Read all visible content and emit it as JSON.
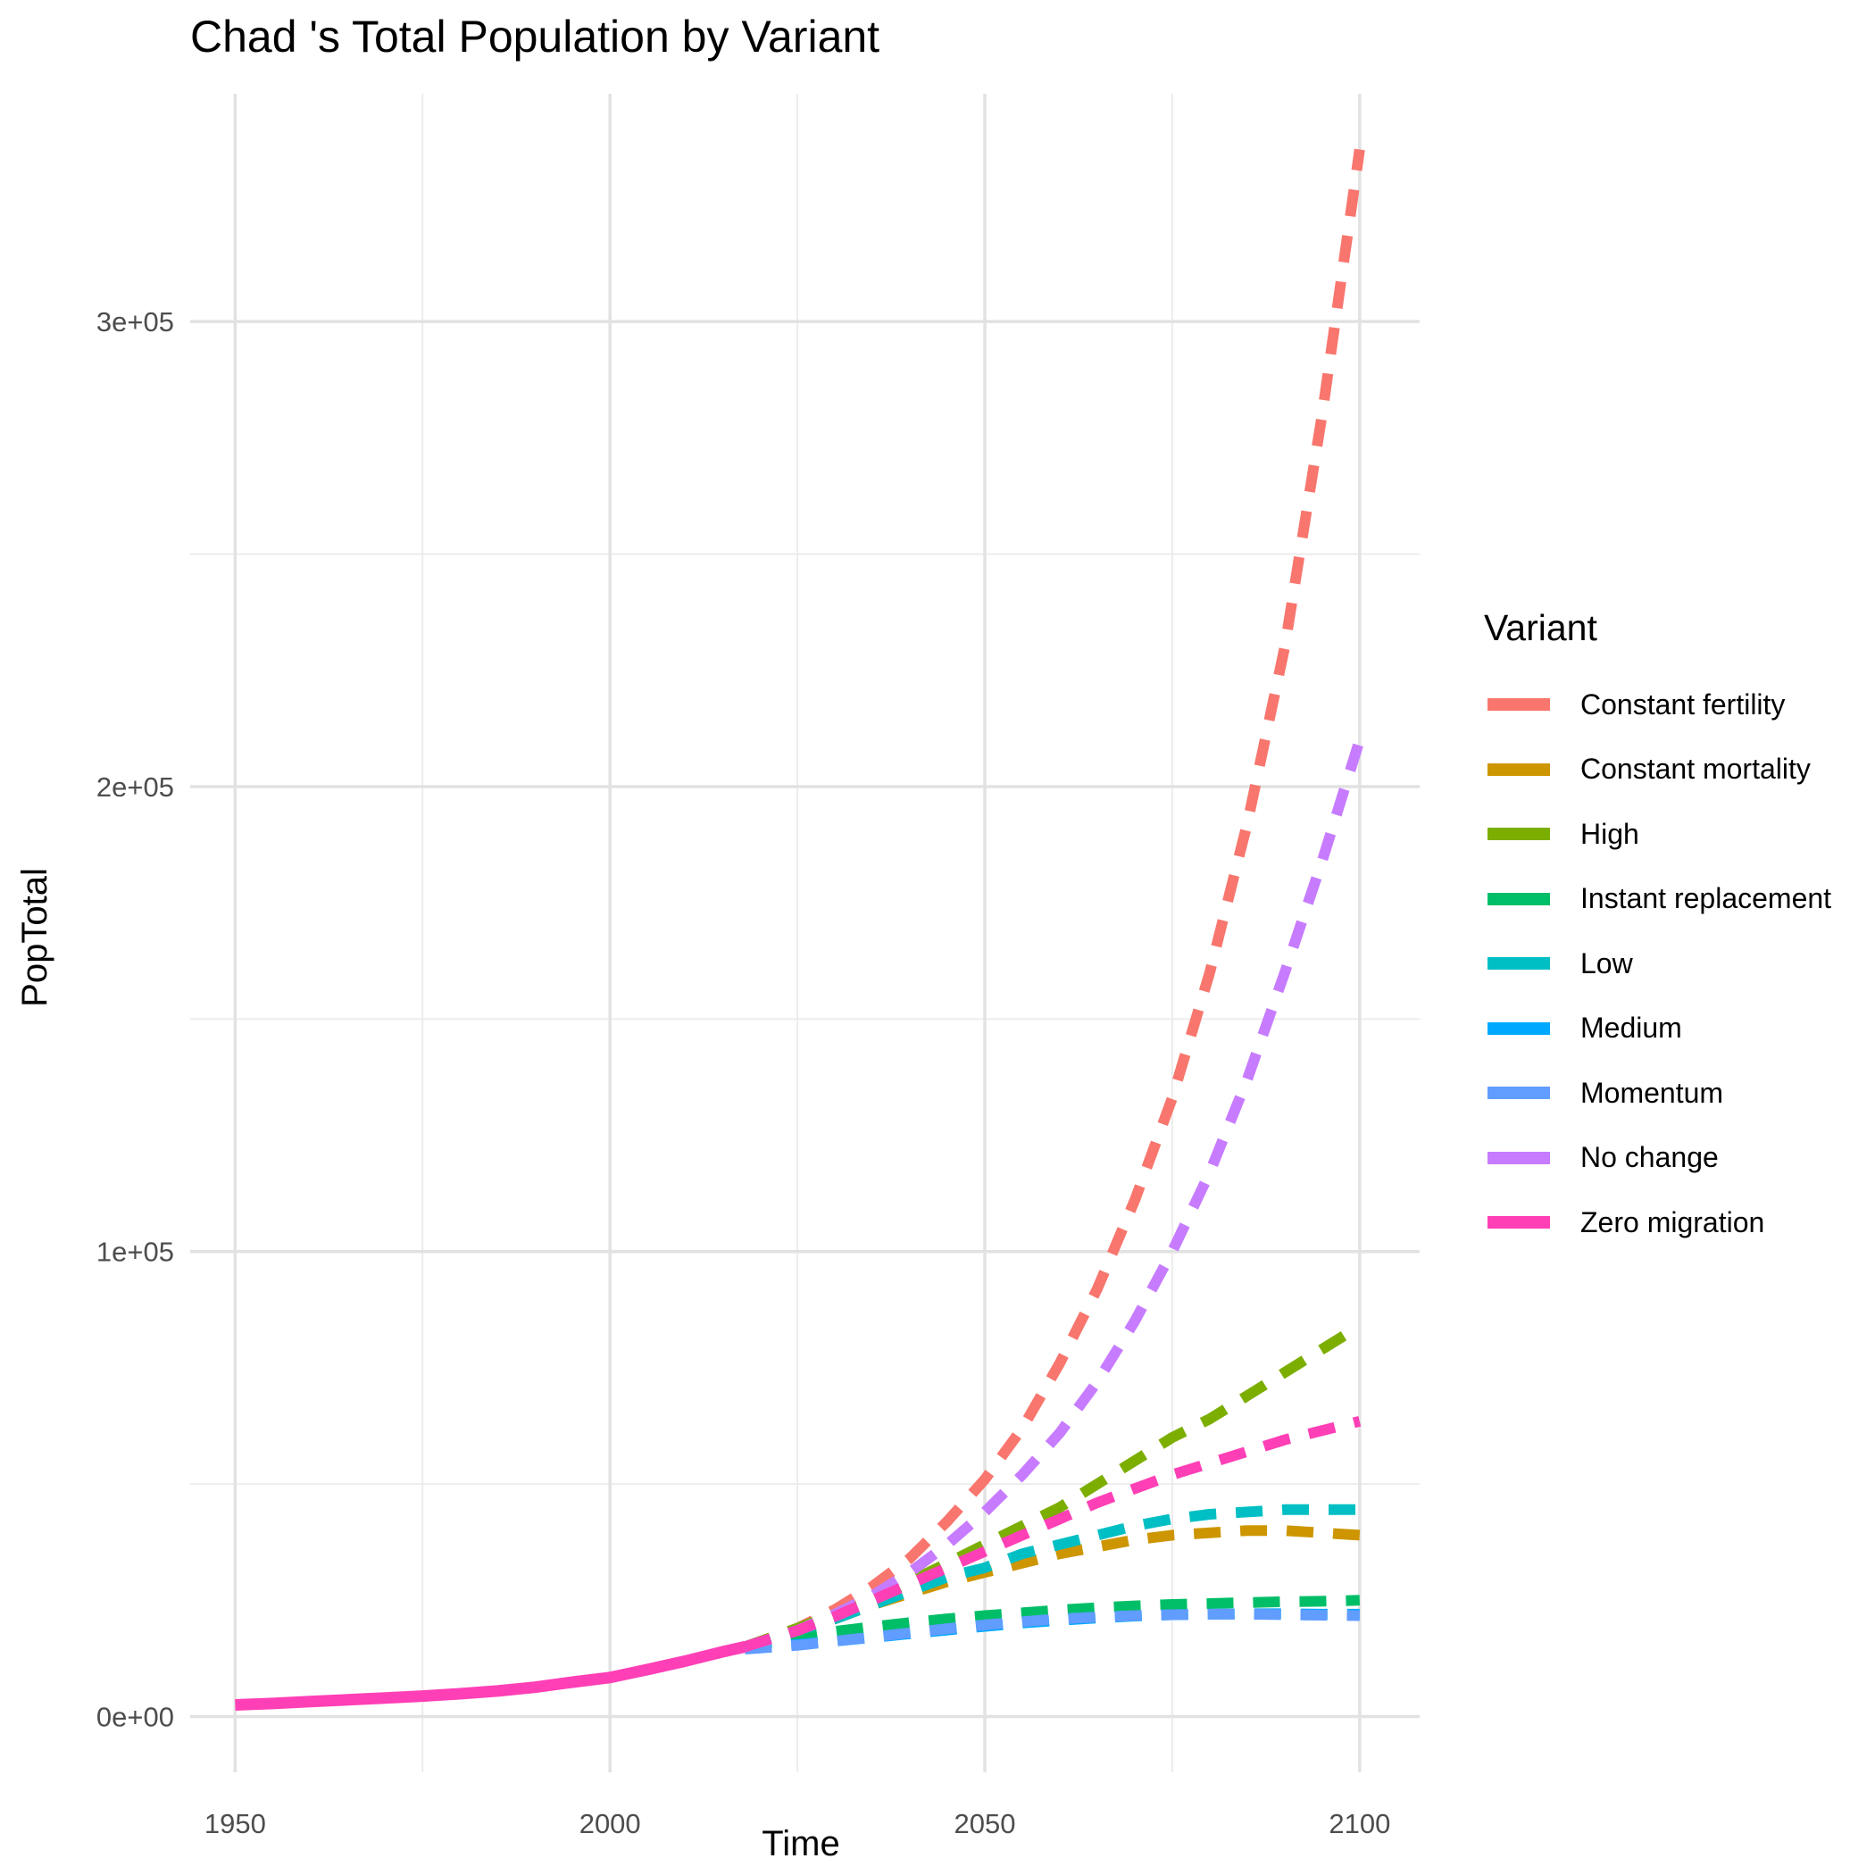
{
  "chart_data": {
    "type": "line",
    "title": "Chad 's Total Population by Variant",
    "xlabel": "Time",
    "ylabel": "PopTotal",
    "xlim": [
      1944,
      2108
    ],
    "ylim": [
      -12000,
      349000
    ],
    "x_ticks": [
      1950,
      2000,
      2050,
      2100
    ],
    "x_tick_labels": [
      "1950",
      "2000",
      "2050",
      "2100"
    ],
    "y_ticks": [
      0,
      100000,
      200000,
      300000
    ],
    "y_tick_labels": [
      "0e+00",
      "1e+05",
      "2e+05",
      "3e+05"
    ],
    "grid": true,
    "legend_title": "Variant",
    "legend_position": "right",
    "historical": {
      "name": "Zero migration",
      "color": "#FF3FB6",
      "x": [
        1950,
        1955,
        1960,
        1965,
        1970,
        1975,
        1980,
        1985,
        1990,
        1995,
        2000,
        2005,
        2010,
        2015,
        2018
      ],
      "y": [
        2500,
        2800,
        3200,
        3600,
        4000,
        4400,
        4900,
        5500,
        6300,
        7400,
        8400,
        10100,
        11900,
        13900,
        15000
      ]
    },
    "series": [
      {
        "name": "Constant fertility",
        "color": "#F8766D",
        "x": [
          2018,
          2025,
          2030,
          2035,
          2040,
          2045,
          2050,
          2055,
          2060,
          2065,
          2070,
          2075,
          2080,
          2085,
          2090,
          2095,
          2100
        ],
        "y": [
          15000,
          19000,
          23000,
          28000,
          34000,
          42000,
          51000,
          62000,
          76000,
          92000,
          111000,
          133000,
          160000,
          192000,
          230000,
          280000,
          337000
        ]
      },
      {
        "name": "Constant mortality",
        "color": "#CD9600",
        "x": [
          2018,
          2025,
          2030,
          2035,
          2040,
          2045,
          2050,
          2055,
          2060,
          2065,
          2070,
          2075,
          2080,
          2085,
          2090,
          2095,
          2100
        ],
        "y": [
          15000,
          18500,
          21000,
          24000,
          26500,
          29000,
          31000,
          33000,
          35000,
          36500,
          38000,
          39000,
          39500,
          40000,
          40000,
          39500,
          39000
        ]
      },
      {
        "name": "High",
        "color": "#7CAE00",
        "x": [
          2018,
          2025,
          2030,
          2035,
          2040,
          2045,
          2050,
          2055,
          2060,
          2065,
          2070,
          2075,
          2080,
          2085,
          2090,
          2095,
          2100
        ],
        "y": [
          15000,
          19000,
          22000,
          25000,
          29000,
          33000,
          37000,
          41000,
          45000,
          50000,
          55000,
          60000,
          64000,
          69000,
          74000,
          79000,
          84000
        ]
      },
      {
        "name": "Instant replacement",
        "color": "#00BE67",
        "x": [
          2018,
          2025,
          2030,
          2035,
          2040,
          2045,
          2050,
          2055,
          2060,
          2065,
          2070,
          2075,
          2080,
          2085,
          2090,
          2095,
          2100
        ],
        "y": [
          15000,
          17000,
          18300,
          19300,
          20200,
          21000,
          21700,
          22300,
          22900,
          23400,
          23800,
          24100,
          24300,
          24500,
          24700,
          24800,
          25000
        ]
      },
      {
        "name": "Low",
        "color": "#00BFC4",
        "x": [
          2018,
          2025,
          2030,
          2035,
          2040,
          2045,
          2050,
          2055,
          2060,
          2065,
          2070,
          2075,
          2080,
          2085,
          2090,
          2095,
          2100
        ],
        "y": [
          15000,
          18500,
          21000,
          24000,
          27000,
          30000,
          32000,
          35000,
          37000,
          39000,
          41000,
          42500,
          43500,
          44000,
          44500,
          44500,
          44500
        ]
      },
      {
        "name": "Medium",
        "color": "#00A9FF",
        "x": [
          2018,
          2025,
          2030,
          2035,
          2040,
          2045,
          2050,
          2055,
          2060,
          2065,
          2070,
          2075,
          2080,
          2085,
          2090,
          2095,
          2100
        ],
        "y": [
          15000,
          15500,
          16200,
          17000,
          17800,
          18600,
          19400,
          20100,
          20700,
          21200,
          21600,
          21900,
          22000,
          22100,
          22100,
          22000,
          22000
        ]
      },
      {
        "name": "Momentum",
        "color": "#619CFF",
        "x": [
          2018,
          2025,
          2030,
          2035,
          2040,
          2045,
          2050,
          2055,
          2060,
          2065,
          2070,
          2075,
          2080,
          2085,
          2090,
          2095,
          2100
        ],
        "y": [
          14500,
          15300,
          16200,
          17100,
          18000,
          18900,
          19700,
          20400,
          21000,
          21400,
          21700,
          21900,
          22000,
          22000,
          21900,
          21800,
          21700
        ]
      },
      {
        "name": "No change",
        "color": "#C77CFF",
        "x": [
          2018,
          2025,
          2030,
          2035,
          2040,
          2045,
          2050,
          2055,
          2060,
          2065,
          2070,
          2075,
          2080,
          2085,
          2090,
          2095,
          2100
        ],
        "y": [
          15000,
          18500,
          22000,
          26000,
          31000,
          37000,
          44000,
          52000,
          61000,
          72000,
          85000,
          100000,
          117000,
          137000,
          160000,
          184000,
          210000
        ]
      },
      {
        "name": "Zero migration",
        "color": "#FF3FB6",
        "x": [
          2018,
          2025,
          2030,
          2035,
          2040,
          2045,
          2050,
          2055,
          2060,
          2065,
          2070,
          2075,
          2080,
          2085,
          2090,
          2095,
          2100
        ],
        "y": [
          15000,
          18500,
          21500,
          25000,
          28500,
          32000,
          35500,
          39000,
          42500,
          46000,
          49000,
          52000,
          54500,
          57000,
          59500,
          61500,
          63500
        ]
      }
    ]
  }
}
